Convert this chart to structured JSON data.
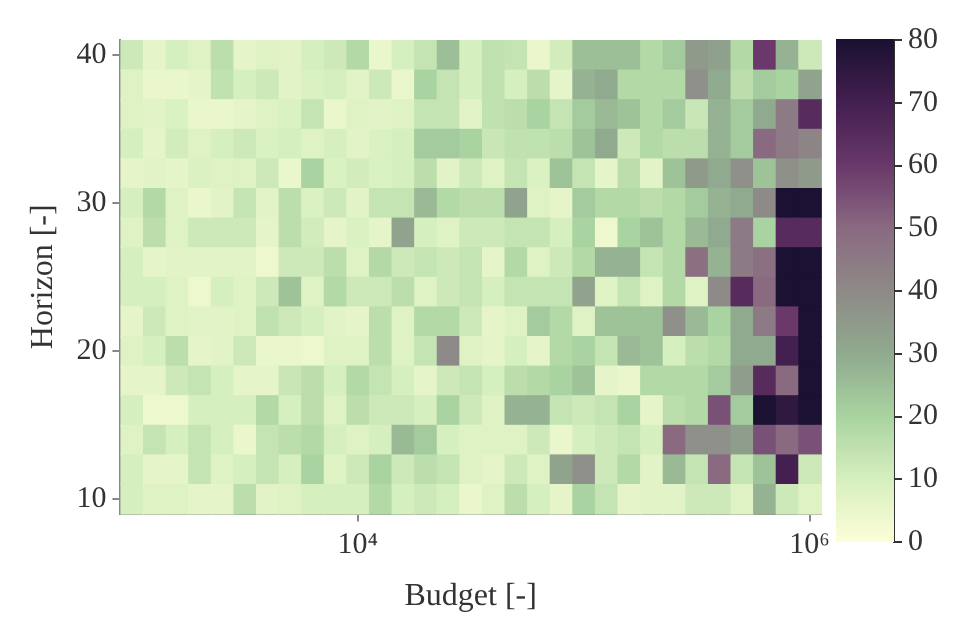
{
  "chart_data": {
    "type": "heatmap",
    "xlabel": "Budget [-]",
    "ylabel": "Horizon [-]",
    "log": "x",
    "x": [
      1000,
      1259,
      1585,
      1995,
      2512,
      3162,
      3981,
      5012,
      6310,
      7943,
      10000,
      12589,
      15849,
      19953,
      25119,
      31623,
      39811,
      50119,
      63096,
      79433,
      100000,
      125893,
      158489,
      199526,
      251189,
      316228,
      398107,
      501187,
      630957,
      794328,
      1000000
    ],
    "y": [
      40,
      38,
      36,
      34,
      32,
      30,
      28,
      26,
      24,
      22,
      20,
      18,
      16,
      14,
      12,
      10
    ],
    "xlim": [
      891.25,
      1122018
    ],
    "ylim": [
      9,
      41
    ],
    "xticks": [
      {
        "value": 10000,
        "label": "10⁴"
      },
      {
        "value": 1000000,
        "label": "10⁶"
      }
    ],
    "yticks": [
      10,
      20,
      30,
      40
    ],
    "clim": [
      0,
      80
    ],
    "cticks": [
      0,
      10,
      20,
      30,
      40,
      50,
      60,
      70,
      80
    ],
    "cells": [
      [
        12,
        6,
        10,
        8,
        16,
        6,
        8,
        7,
        10,
        12,
        18,
        5,
        10,
        14,
        25,
        10,
        15,
        14,
        5,
        11,
        25,
        25,
        25,
        18,
        22,
        35,
        33,
        18,
        60,
        28,
        12
      ],
      [
        8,
        5,
        5,
        6,
        15,
        10,
        12,
        7,
        9,
        10,
        7,
        12,
        5,
        20,
        14,
        10,
        15,
        10,
        16,
        6,
        28,
        30,
        18,
        18,
        18,
        38,
        30,
        16,
        22,
        20,
        32
      ],
      [
        8,
        7,
        9,
        5,
        5,
        6,
        8,
        9,
        14,
        5,
        8,
        7,
        8,
        14,
        14,
        7,
        15,
        16,
        20,
        14,
        22,
        26,
        24,
        18,
        22,
        13,
        28,
        22,
        30,
        45,
        65
      ],
      [
        10,
        6,
        11,
        8,
        10,
        12,
        9,
        10,
        8,
        10,
        7,
        9,
        10,
        22,
        22,
        20,
        13,
        15,
        15,
        16,
        24,
        30,
        12,
        18,
        16,
        16,
        28,
        22,
        50,
        45,
        42
      ],
      [
        6,
        7,
        6,
        9,
        8,
        8,
        12,
        5,
        20,
        9,
        11,
        9,
        10,
        16,
        7,
        12,
        8,
        14,
        9,
        24,
        14,
        6,
        16,
        7,
        24,
        35,
        30,
        38,
        24,
        38,
        35
      ],
      [
        10,
        18,
        8,
        5,
        7,
        14,
        7,
        16,
        9,
        12,
        7,
        14,
        14,
        26,
        18,
        16,
        16,
        32,
        8,
        6,
        22,
        18,
        18,
        16,
        18,
        22,
        28,
        30,
        40,
        80,
        80
      ],
      [
        8,
        16,
        8,
        12,
        12,
        12,
        6,
        16,
        11,
        6,
        9,
        6,
        32,
        10,
        8,
        12,
        12,
        14,
        14,
        10,
        20,
        4,
        20,
        24,
        18,
        26,
        30,
        45,
        20,
        65,
        65
      ],
      [
        10,
        6,
        7,
        7,
        7,
        7,
        4,
        12,
        12,
        16,
        8,
        18,
        12,
        14,
        12,
        14,
        6,
        18,
        8,
        12,
        18,
        28,
        28,
        14,
        18,
        48,
        28,
        45,
        48,
        80,
        80
      ],
      [
        10,
        10,
        8,
        4,
        10,
        8,
        12,
        24,
        8,
        18,
        12,
        12,
        16,
        8,
        12,
        14,
        10,
        14,
        14,
        14,
        32,
        8,
        14,
        8,
        18,
        8,
        40,
        65,
        50,
        80,
        80
      ],
      [
        6,
        12,
        8,
        7,
        7,
        8,
        15,
        12,
        10,
        7,
        6,
        16,
        8,
        18,
        18,
        12,
        6,
        8,
        22,
        18,
        8,
        24,
        24,
        24,
        38,
        26,
        20,
        30,
        45,
        60,
        80
      ],
      [
        8,
        10,
        16,
        6,
        7,
        12,
        5,
        5,
        4,
        8,
        8,
        16,
        8,
        14,
        40,
        8,
        6,
        10,
        6,
        18,
        20,
        14,
        26,
        24,
        10,
        16,
        18,
        30,
        30,
        70,
        80
      ],
      [
        6,
        6,
        12,
        14,
        10,
        6,
        6,
        13,
        16,
        10,
        18,
        14,
        10,
        6,
        12,
        14,
        10,
        16,
        18,
        20,
        24,
        6,
        5,
        18,
        18,
        18,
        22,
        34,
        65,
        50,
        80
      ],
      [
        10,
        4,
        4,
        10,
        10,
        10,
        18,
        10,
        16,
        8,
        16,
        12,
        12,
        10,
        20,
        12,
        8,
        28,
        28,
        14,
        12,
        14,
        20,
        6,
        16,
        18,
        55,
        22,
        80,
        75,
        80
      ],
      [
        8,
        14,
        10,
        14,
        10,
        5,
        14,
        16,
        18,
        10,
        8,
        10,
        26,
        22,
        10,
        8,
        8,
        8,
        12,
        5,
        10,
        12,
        14,
        10,
        50,
        38,
        38,
        34,
        55,
        50,
        55
      ],
      [
        10,
        6,
        6,
        14,
        8,
        10,
        14,
        10,
        20,
        8,
        12,
        20,
        12,
        16,
        14,
        8,
        6,
        12,
        8,
        32,
        38,
        12,
        18,
        7,
        26,
        14,
        50,
        14,
        24,
        70,
        12
      ],
      [
        10,
        8,
        8,
        6,
        6,
        16,
        7,
        8,
        10,
        10,
        10,
        18,
        10,
        12,
        10,
        5,
        8,
        16,
        10,
        6,
        20,
        14,
        6,
        7,
        7,
        12,
        12,
        8,
        28,
        12,
        8
      ]
    ]
  }
}
